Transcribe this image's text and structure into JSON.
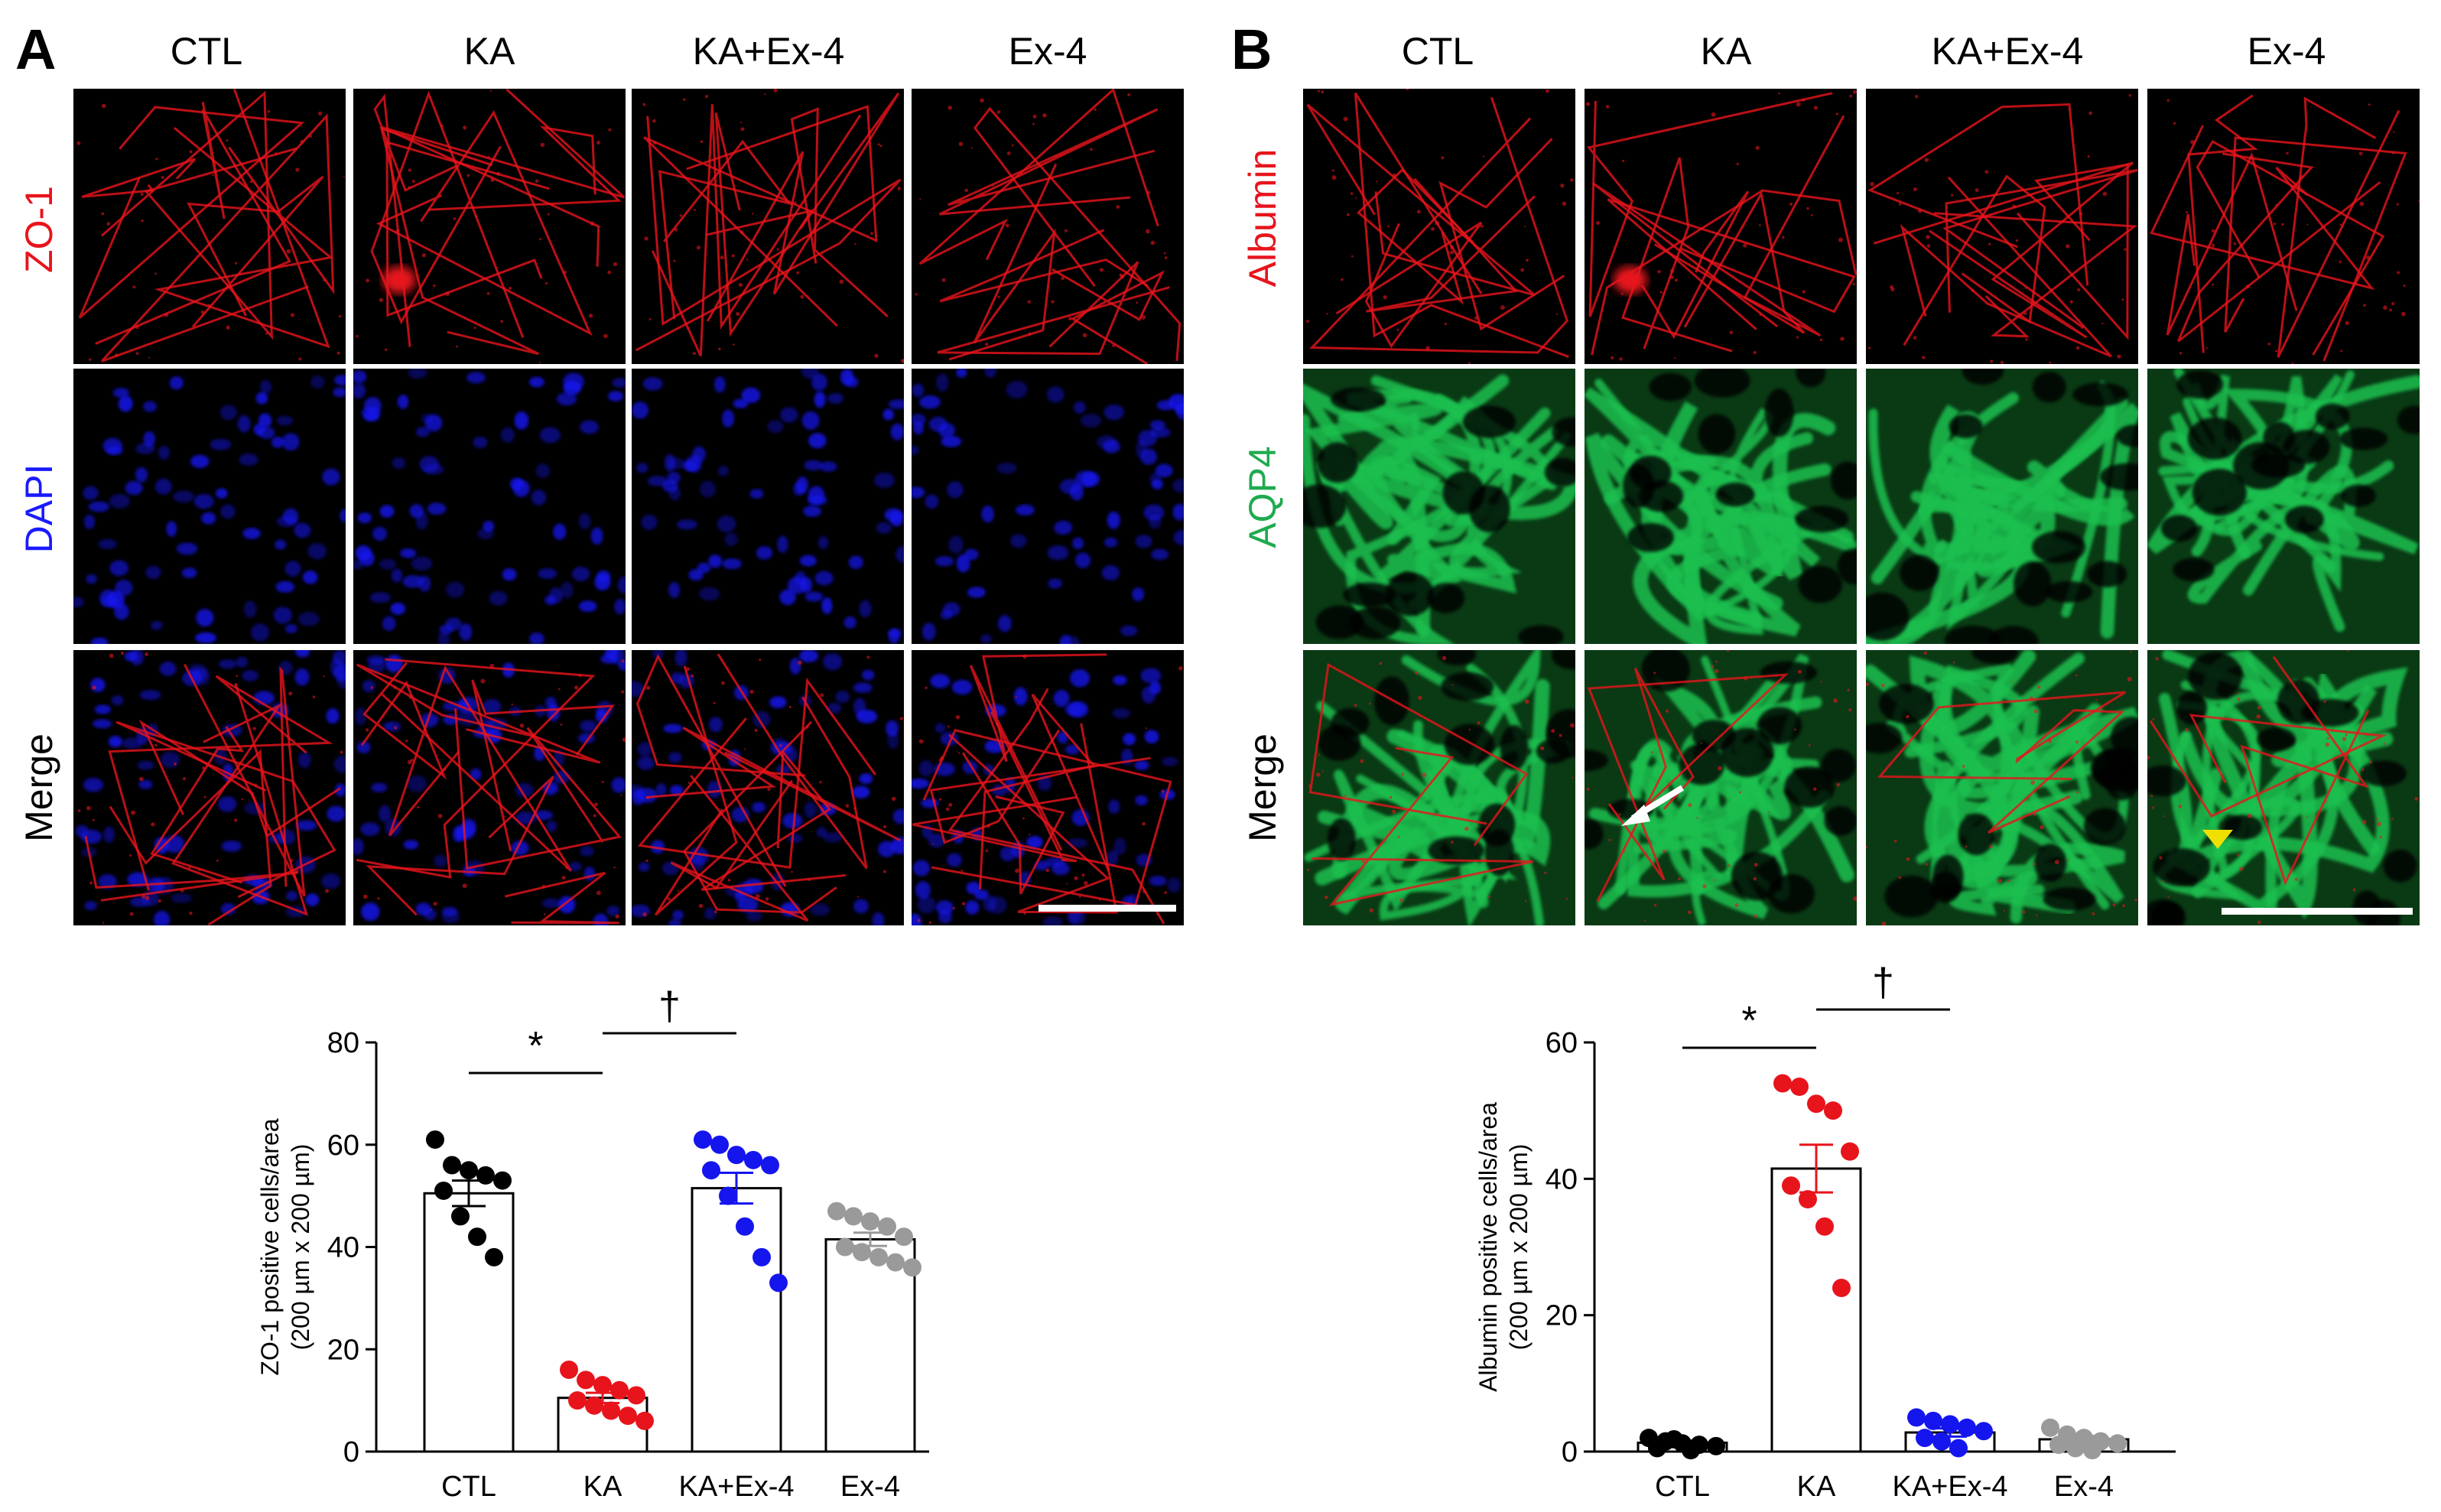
{
  "panel_a": {
    "letter": "A",
    "columns": [
      "CTL",
      "KA",
      "KA+Ex-4",
      "Ex-4"
    ],
    "rows": [
      {
        "label": "ZO-1",
        "label_color": "#e8141c",
        "channel": "red"
      },
      {
        "label": "DAPI",
        "label_color": "#1a1aff",
        "channel": "blue"
      },
      {
        "label": "Merge",
        "label_color": "#000000",
        "channel": "merge-red-blue"
      }
    ],
    "scale_bar": true
  },
  "panel_b": {
    "letter": "B",
    "columns": [
      "CTL",
      "KA",
      "KA+Ex-4",
      "Ex-4"
    ],
    "rows": [
      {
        "label": "Albumin",
        "label_color": "#e8141c",
        "channel": "red"
      },
      {
        "label": "AQP4",
        "label_color": "#1faa4f",
        "channel": "green"
      },
      {
        "label": "Merge",
        "label_color": "#000000",
        "channel": "merge-red-green"
      }
    ],
    "scale_bar": true,
    "annotations": [
      "white-arrow",
      "yellow-arrowhead"
    ]
  },
  "colors": {
    "red": "#e8141c",
    "blue": "#1515ee",
    "green": "#1fc04f",
    "gray": "#9a9a9a",
    "black": "#000000",
    "yellow": "#f0e000"
  },
  "chart_data": [
    {
      "type": "bar",
      "id": "zo1",
      "categories": [
        "CTL",
        "KA",
        "KA+Ex-4",
        "Ex-4"
      ],
      "values": [
        50.5,
        10.5,
        51.5,
        41.5
      ],
      "sem": [
        2.5,
        1.0,
        3.0,
        1.3
      ],
      "points": [
        [
          61,
          56,
          55,
          54,
          53,
          51,
          46,
          42,
          38
        ],
        [
          16,
          14,
          13,
          12,
          11,
          10,
          9,
          8,
          7,
          6
        ],
        [
          61,
          60,
          58,
          57,
          56,
          55,
          50,
          44,
          38,
          33
        ],
        [
          47,
          46,
          45,
          44,
          42,
          40,
          39,
          38,
          37,
          36
        ]
      ],
      "point_colors": [
        "#000000",
        "#e8141c",
        "#1515ee",
        "#9a9a9a"
      ],
      "ylabel": "ZO-1 positive cells/area",
      "ylabel2": "(200 µm x 200 µm)",
      "ylim": [
        0,
        80
      ],
      "yticks": [
        0,
        20,
        40,
        60,
        80
      ],
      "significance": [
        {
          "from": 0,
          "to": 1,
          "symbol": "*"
        },
        {
          "from": 1,
          "to": 2,
          "symbol": "†"
        }
      ]
    },
    {
      "type": "bar",
      "id": "albumin",
      "categories": [
        "CTL",
        "KA",
        "KA+Ex-4",
        "Ex-4"
      ],
      "values": [
        1.3,
        41.5,
        2.8,
        1.8
      ],
      "sem": [
        0.3,
        3.5,
        0.6,
        0.5
      ],
      "points": [
        [
          2.0,
          1.5,
          1.2,
          1.0,
          0.8,
          0.5,
          1.8,
          0.2
        ],
        [
          54,
          53.5,
          51,
          50,
          44,
          39,
          37,
          33,
          24
        ],
        [
          5,
          4.5,
          4,
          3.5,
          3,
          2,
          1.5,
          0.5
        ],
        [
          3.5,
          2.5,
          2,
          1.5,
          1.2,
          1,
          0.5,
          0.2
        ]
      ],
      "point_colors": [
        "#000000",
        "#e8141c",
        "#1515ee",
        "#9a9a9a"
      ],
      "ylabel": "Albumin positive cells/area",
      "ylabel2": "(200 µm x 200 µm)",
      "ylim": [
        0,
        60
      ],
      "yticks": [
        0,
        20,
        40,
        60
      ],
      "significance": [
        {
          "from": 0,
          "to": 1,
          "symbol": "*"
        },
        {
          "from": 1,
          "to": 2,
          "symbol": "†"
        }
      ]
    }
  ]
}
